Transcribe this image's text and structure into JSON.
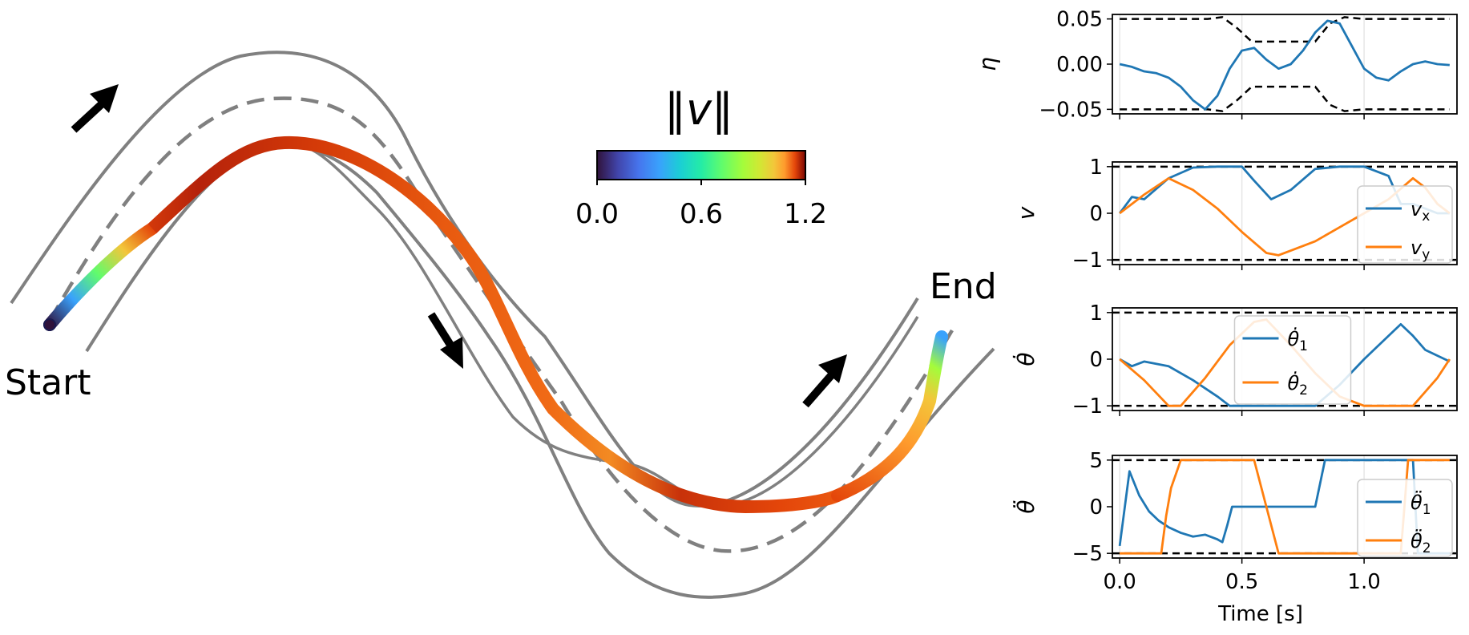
{
  "colors": {
    "blue": "#1f77b4",
    "orange": "#ff7f0e",
    "track": "#808080",
    "limit": "#000000"
  },
  "chart_data": [
    {
      "type": "line",
      "role": "trajectory",
      "start_label": "Start",
      "end_label": "End",
      "colorbar": {
        "title": "‖v‖",
        "ticks": [
          "0.0",
          "0.6",
          "1.2"
        ],
        "range": [
          0,
          1.2
        ],
        "colormap": "turbo"
      }
    },
    {
      "type": "line",
      "ylabel": "η",
      "yticks": [
        "0.05",
        "0.00",
        "−0.05"
      ],
      "ylim": [
        -0.055,
        0.055
      ],
      "x": [
        0,
        0.05,
        0.1,
        0.15,
        0.2,
        0.25,
        0.3,
        0.35,
        0.4,
        0.45,
        0.5,
        0.55,
        0.6,
        0.65,
        0.7,
        0.75,
        0.8,
        0.85,
        0.9,
        0.95,
        1.0,
        1.05,
        1.1,
        1.15,
        1.2,
        1.25,
        1.3,
        1.35
      ],
      "series": [
        {
          "values": [
            0,
            -0.003,
            -0.008,
            -0.01,
            -0.015,
            -0.025,
            -0.04,
            -0.05,
            -0.035,
            -0.005,
            0.015,
            0.018,
            0.005,
            -0.005,
            0.0,
            0.015,
            0.035,
            0.048,
            0.045,
            0.02,
            -0.005,
            -0.015,
            -0.018,
            -0.008,
            0.0,
            0.003,
            0.0,
            -0.001
          ]
        }
      ],
      "limits": {
        "x": [
          0,
          0.3,
          0.36,
          0.42,
          0.48,
          0.54,
          0.6,
          0.7,
          0.8,
          0.86,
          0.92,
          1.0,
          1.1,
          1.2,
          1.3,
          1.35
        ],
        "upper": [
          0.05,
          0.05,
          0.05,
          0.052,
          0.04,
          0.025,
          0.025,
          0.025,
          0.025,
          0.045,
          0.052,
          0.05,
          0.05,
          0.05,
          0.05,
          0.05
        ],
        "lower": [
          -0.05,
          -0.05,
          -0.05,
          -0.052,
          -0.04,
          -0.025,
          -0.025,
          -0.025,
          -0.025,
          -0.045,
          -0.052,
          -0.05,
          -0.05,
          -0.05,
          -0.05,
          -0.05
        ]
      }
    },
    {
      "type": "line",
      "ylabel": "v",
      "yticks": [
        "1",
        "0",
        "−1"
      ],
      "ylim": [
        -1.1,
        1.1
      ],
      "legend": "right",
      "limits_y": [
        1,
        -1
      ],
      "series": [
        {
          "name": "v",
          "sub": "x",
          "x": [
            0,
            0.05,
            0.1,
            0.2,
            0.3,
            0.4,
            0.5,
            0.55,
            0.62,
            0.7,
            0.8,
            0.9,
            1.0,
            1.1,
            1.15,
            1.2,
            1.3,
            1.35
          ],
          "values": [
            0,
            0.35,
            0.3,
            0.75,
            0.98,
            1.0,
            1.0,
            0.7,
            0.3,
            0.5,
            0.95,
            1.0,
            1.0,
            0.8,
            0.2,
            0.2,
            0.0,
            0.0
          ]
        },
        {
          "name": "v",
          "sub": "y",
          "x": [
            0,
            0.1,
            0.2,
            0.3,
            0.4,
            0.5,
            0.6,
            0.65,
            0.7,
            0.8,
            0.9,
            1.0,
            1.1,
            1.2,
            1.25,
            1.3,
            1.35
          ],
          "values": [
            0,
            0.4,
            0.75,
            0.5,
            0.1,
            -0.4,
            -0.85,
            -0.9,
            -0.8,
            -0.6,
            -0.3,
            0.0,
            0.3,
            0.75,
            0.55,
            0.2,
            0.0
          ]
        }
      ]
    },
    {
      "type": "line",
      "ylabel": "θ̇",
      "yticks": [
        "1",
        "0",
        "−1"
      ],
      "ylim": [
        -1.1,
        1.1
      ],
      "legend": "top-center",
      "limits_y": [
        1,
        -1
      ],
      "series": [
        {
          "name": "θ̇",
          "sub": "1",
          "x": [
            0,
            0.05,
            0.1,
            0.2,
            0.3,
            0.4,
            0.45,
            0.5,
            0.6,
            0.8,
            0.9,
            1.0,
            1.1,
            1.15,
            1.2,
            1.25,
            1.35
          ],
          "values": [
            0,
            -0.15,
            -0.05,
            -0.15,
            -0.45,
            -0.8,
            -1.0,
            -1.0,
            -1.0,
            -1.0,
            -0.55,
            0.0,
            0.5,
            0.75,
            0.5,
            0.2,
            -0.05
          ]
        },
        {
          "name": "θ̇",
          "sub": "2",
          "x": [
            0,
            0.1,
            0.2,
            0.25,
            0.35,
            0.45,
            0.55,
            0.6,
            0.7,
            0.8,
            0.9,
            1.0,
            1.1,
            1.2,
            1.3,
            1.35
          ],
          "values": [
            0,
            -0.45,
            -1.0,
            -1.0,
            -0.4,
            0.3,
            0.8,
            0.85,
            0.3,
            -0.3,
            -0.8,
            -1.0,
            -1.0,
            -1.0,
            -0.4,
            0.0
          ]
        }
      ]
    },
    {
      "type": "line",
      "ylabel": "θ̈",
      "yticks": [
        "5",
        "0",
        "−5"
      ],
      "ylim": [
        -5.5,
        5.5
      ],
      "legend": "right",
      "limits_y": [
        5,
        -5
      ],
      "xticks": [
        "0.0",
        "0.5",
        "1.0"
      ],
      "xtick_values": [
        0,
        0.5,
        1.0
      ],
      "xlim": [
        -0.03,
        1.38
      ],
      "xlabel": "Time [s]",
      "series": [
        {
          "name": "θ̈",
          "sub": "1",
          "x": [
            0,
            0.04,
            0.08,
            0.12,
            0.16,
            0.2,
            0.25,
            0.3,
            0.35,
            0.4,
            0.42,
            0.44,
            0.46,
            0.6,
            0.75,
            0.8,
            0.82,
            0.84,
            1.05,
            1.2,
            1.22,
            1.3,
            1.35
          ],
          "values": [
            -4.2,
            3.8,
            1.2,
            -0.5,
            -1.5,
            -2.2,
            -2.8,
            -3.2,
            -3.0,
            -3.5,
            -3.8,
            -2.0,
            0.0,
            0.0,
            0.0,
            0.0,
            2.5,
            5.0,
            5.0,
            5.0,
            -5.0,
            -5.0,
            -5.0
          ]
        },
        {
          "name": "θ̈",
          "sub": "2",
          "x": [
            0,
            0.17,
            0.19,
            0.21,
            0.25,
            0.45,
            0.5,
            0.55,
            0.6,
            0.65,
            0.85,
            1.0,
            1.05,
            1.15,
            1.18,
            1.25,
            1.35
          ],
          "values": [
            -5.0,
            -5.0,
            -1.0,
            2.0,
            5.0,
            5.0,
            5.0,
            5.0,
            0.0,
            -5.0,
            -5.0,
            -5.0,
            -5.0,
            -5.0,
            5.0,
            5.0,
            5.0
          ]
        }
      ]
    }
  ]
}
